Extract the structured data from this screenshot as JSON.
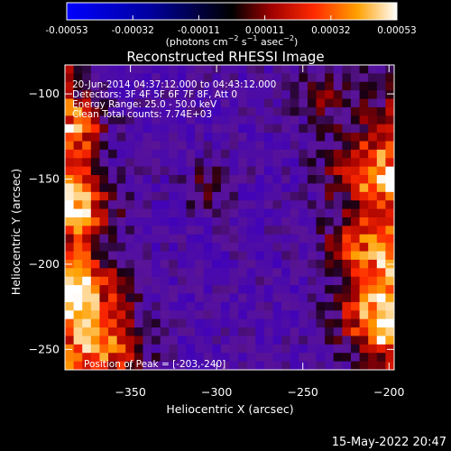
{
  "colorbar": {
    "ticks": [
      "-0.00053",
      "-0.00032",
      "-0.00011",
      "0.00011",
      "0.00032",
      "0.00053"
    ],
    "unit_label": "(photons cm",
    "unit_exp1": "−2",
    "unit_mid": " s",
    "unit_exp2": "−1",
    "unit_mid2": " asec",
    "unit_exp3": "−2",
    "unit_end": ")",
    "range": [
      -0.00053,
      0.00053
    ],
    "colors": {
      "low": "#0000ff",
      "mid": "#000000",
      "high_1": "#a00000",
      "high_2": "#ff2a00",
      "high_3": "#ffa000",
      "high_4": "#ffffff"
    }
  },
  "chart_data": {
    "type": "heatmap",
    "title": "Reconstructed RHESSI Image",
    "xlabel": "Heliocentric X (arcsec)",
    "ylabel": "Heliocentric Y (arcsec)",
    "xlim": [
      -388,
      -197
    ],
    "ylim": [
      -262,
      -83
    ],
    "xticks": [
      -350,
      -300,
      -250,
      -200
    ],
    "yticks": [
      -100,
      -150,
      -200,
      -250
    ],
    "annotations": {
      "time_range": "20-Jun-2014 04:37:12.000 to 04:43:12.000",
      "detectors": "Detectors: 3F 4F 5F 6F 7F 8F, Att 0",
      "energy": "Energy Range: 25.0 - 50.0 keV",
      "clean": "Clean    Total counts: 7.74E+03",
      "peak": "Position of Peak = [-203,-240]"
    },
    "peak_position": [
      -203,
      -240
    ],
    "grid": false
  },
  "footer": {
    "timestamp": "15-May-2022 20:47"
  }
}
